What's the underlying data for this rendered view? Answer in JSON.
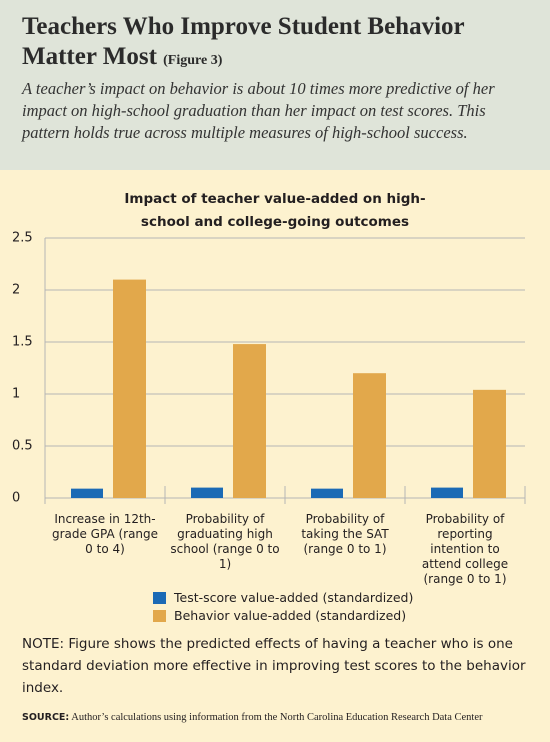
{
  "header": {
    "title": "Teachers Who Improve Student Behavior Matter Most",
    "figure": "(Figure 3)",
    "subtitle": "A teacher’s impact on behavior is about 10 times more predictive of her impact on high-school graduation than her impact on test scores. This pattern holds true across multiple measures of high-school success."
  },
  "chart_data": {
    "type": "bar",
    "title": "Impact of teacher value-added on high-school and college-going outcomes",
    "categories": [
      "Increase in 12th-grade GPA (range 0 to 4)",
      "Probability of graduating high school (range 0 to 1)",
      "Probability of taking the SAT (range 0 to 1)",
      "Probability of reporting intention to attend college (range 0 to 1)"
    ],
    "series": [
      {
        "name": "Test-score value-added (standardized)",
        "color": "#1b6ab5",
        "values": [
          0.09,
          0.1,
          0.09,
          0.1
        ]
      },
      {
        "name": "Behavior value-added (standardized)",
        "color": "#e2a84b",
        "values": [
          2.1,
          1.48,
          1.2,
          1.04
        ]
      }
    ],
    "ylim": [
      0,
      2.5
    ],
    "yticks": [
      0,
      0.5,
      1,
      1.5,
      2,
      2.5
    ],
    "grid": true
  },
  "note": "NOTE: Figure shows the predicted effects of having a teacher who is one standard deviation more effective in improving test scores to the behavior index.",
  "source": {
    "label": "SOURCE:",
    "text": "Author’s calculations using information from the North Carolina Education Research Data Center"
  }
}
